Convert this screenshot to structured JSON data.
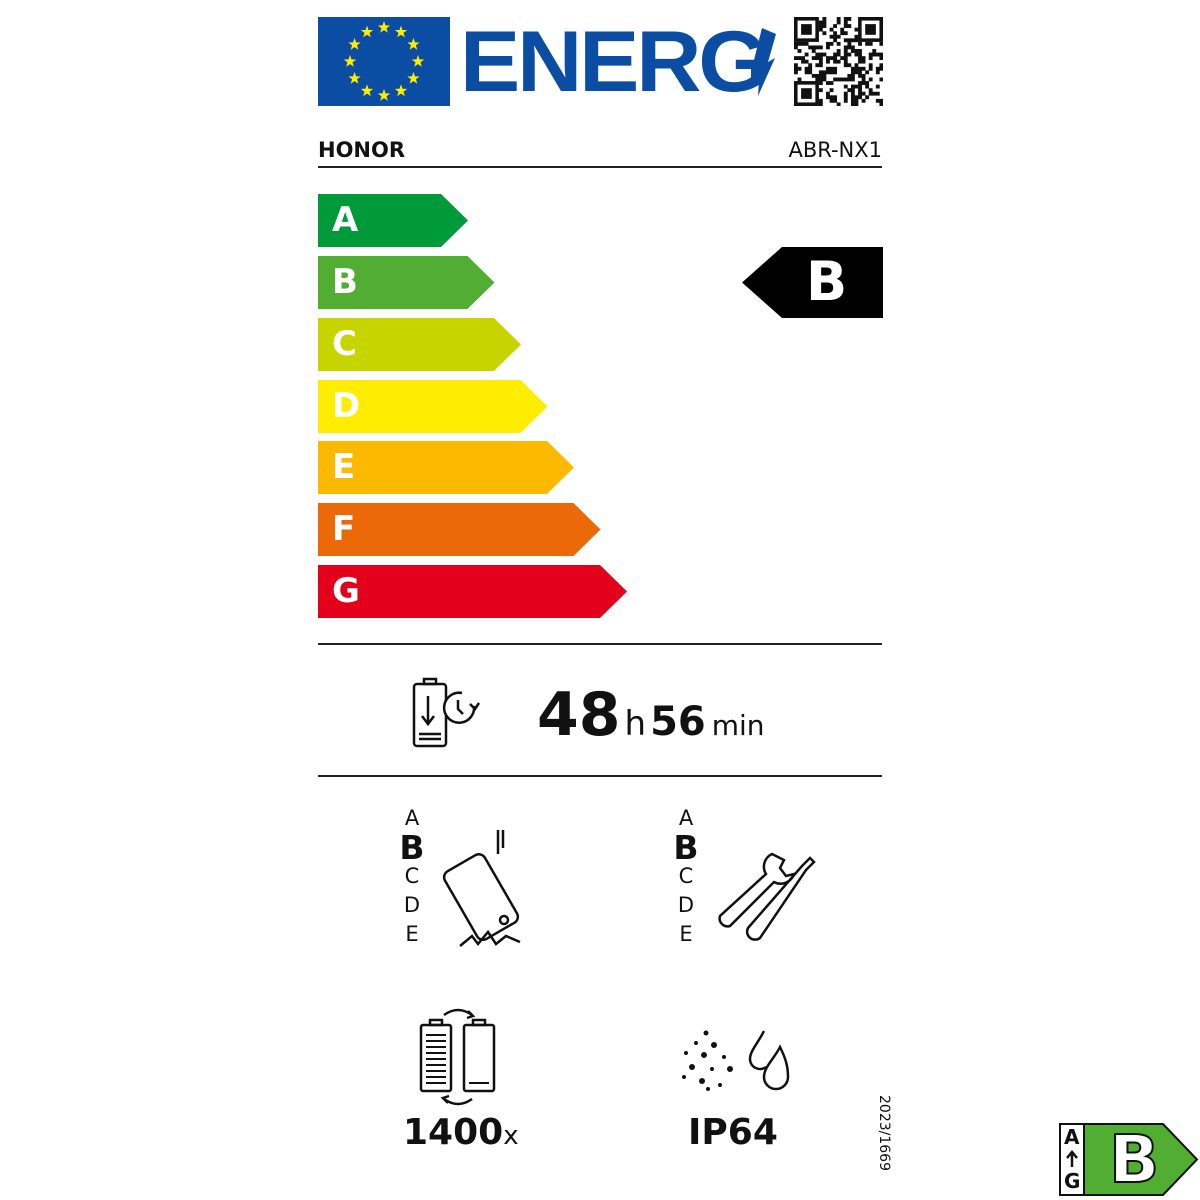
{
  "header": {
    "logo_text": "ENERG",
    "supplier": "HONOR",
    "model": "ABR-NX1"
  },
  "classes": [
    {
      "letter": "A",
      "color": "#009a3a"
    },
    {
      "letter": "B",
      "color": "#52ae32"
    },
    {
      "letter": "C",
      "color": "#c8d400"
    },
    {
      "letter": "D",
      "color": "#ffed00"
    },
    {
      "letter": "E",
      "color": "#fbba00"
    },
    {
      "letter": "F",
      "color": "#eb6909"
    },
    {
      "letter": "G",
      "color": "#e2001a"
    }
  ],
  "energy_class": "B",
  "battery_endurance": {
    "hours": "48",
    "h_unit": "h",
    "minutes": "56",
    "min_unit": "min"
  },
  "drop_resistance": {
    "scale": [
      "A",
      "B",
      "C",
      "D",
      "E"
    ],
    "selected": "B"
  },
  "repairability": {
    "scale": [
      "A",
      "B",
      "C",
      "D",
      "E"
    ],
    "selected": "B"
  },
  "battery_cycles": {
    "value": "1400",
    "unit": "x"
  },
  "ingress_protection": "IP64",
  "regulation": "2023/1669",
  "badge": {
    "top": "A",
    "bottom": "G",
    "class": "B",
    "color": "#52ae32"
  }
}
